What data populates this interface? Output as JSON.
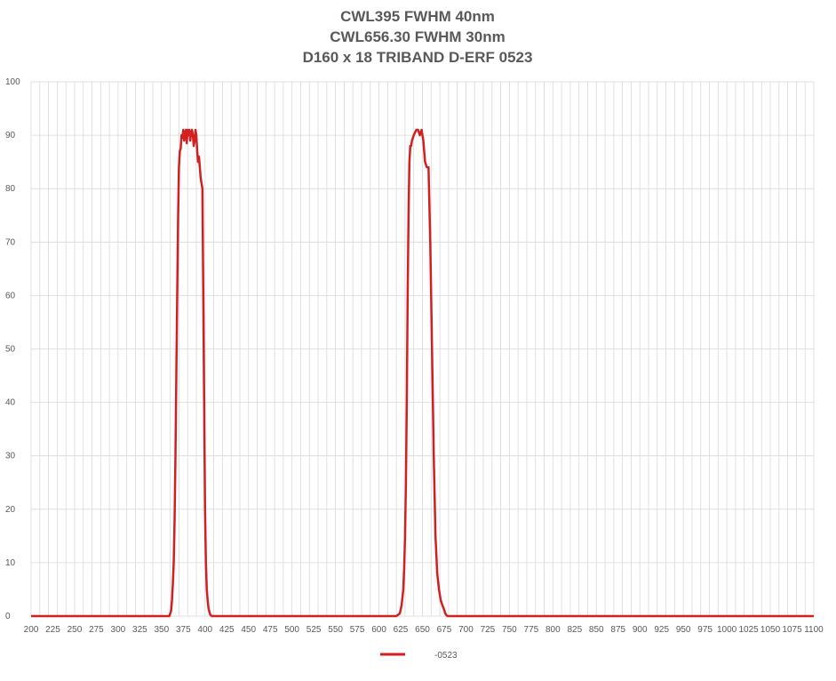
{
  "chart_data": {
    "type": "line",
    "title_lines": [
      "CWL395 FWHM 40nm",
      "CWL656.30 FWHM 30nm",
      "D160 x 18 TRIBAND D-ERF 0523"
    ],
    "xlabel": "",
    "ylabel": "",
    "xlim": [
      200,
      1100
    ],
    "ylim": [
      0,
      100
    ],
    "x_ticks": [
      200,
      225,
      250,
      275,
      300,
      325,
      350,
      375,
      400,
      425,
      450,
      475,
      500,
      525,
      550,
      575,
      600,
      625,
      650,
      675,
      700,
      725,
      750,
      775,
      800,
      825,
      850,
      875,
      900,
      925,
      950,
      975,
      1000,
      1025,
      1050,
      1075,
      1100
    ],
    "y_ticks": [
      0,
      10,
      20,
      30,
      40,
      50,
      60,
      70,
      80,
      90,
      100
    ],
    "grid": true,
    "legend_position": "bottom",
    "colors": {
      "series": "#d21f1f",
      "grid": "#d9d9d9",
      "text": "#595959"
    },
    "series": [
      {
        "name": "-0523",
        "x": [
          200,
          355,
          359,
          361,
          362,
          363,
          364,
          365,
          366,
          367,
          368,
          369,
          370,
          371,
          372,
          373,
          374,
          375,
          376,
          377,
          378,
          379,
          380,
          381,
          382,
          383,
          384,
          385,
          386,
          387,
          388,
          389,
          390,
          391,
          392,
          393,
          394,
          395,
          396,
          397,
          398,
          399,
          400,
          401,
          402,
          403,
          404,
          405,
          406,
          407,
          408,
          409,
          410,
          411,
          412,
          413,
          414,
          418,
          620,
          624,
          626,
          628,
          629,
          630,
          631,
          632,
          633,
          634,
          635,
          636,
          637,
          638,
          640,
          643,
          645,
          647,
          649,
          651,
          653,
          655,
          657,
          659,
          661,
          663,
          665,
          667,
          669,
          671,
          673,
          675,
          676,
          677,
          678,
          679,
          680,
          681,
          682,
          683,
          684,
          686,
          690,
          1100
        ],
        "y": [
          0,
          0,
          0,
          1,
          3,
          6,
          10,
          18,
          30,
          45,
          60,
          74,
          84,
          87,
          87.5,
          90,
          89.5,
          91,
          89,
          90.5,
          91,
          88.5,
          91,
          90,
          91,
          89,
          90.5,
          91,
          90,
          88,
          89,
          91,
          90,
          87,
          85,
          86,
          84,
          82,
          81,
          80,
          60,
          40,
          20,
          10,
          5,
          3,
          1.5,
          0.8,
          0.3,
          0.1,
          0,
          0,
          0,
          0,
          0,
          0,
          0,
          0,
          0,
          0.5,
          2,
          5,
          9,
          15,
          25,
          40,
          60,
          75,
          85,
          88,
          88,
          89,
          90,
          91,
          91,
          90,
          91,
          89,
          85,
          84,
          84,
          70,
          50,
          30,
          15,
          8,
          5,
          3,
          2,
          1.2,
          0.6,
          0.3,
          0.1,
          0,
          0,
          0,
          0,
          0,
          0,
          0,
          0,
          0
        ]
      }
    ]
  }
}
